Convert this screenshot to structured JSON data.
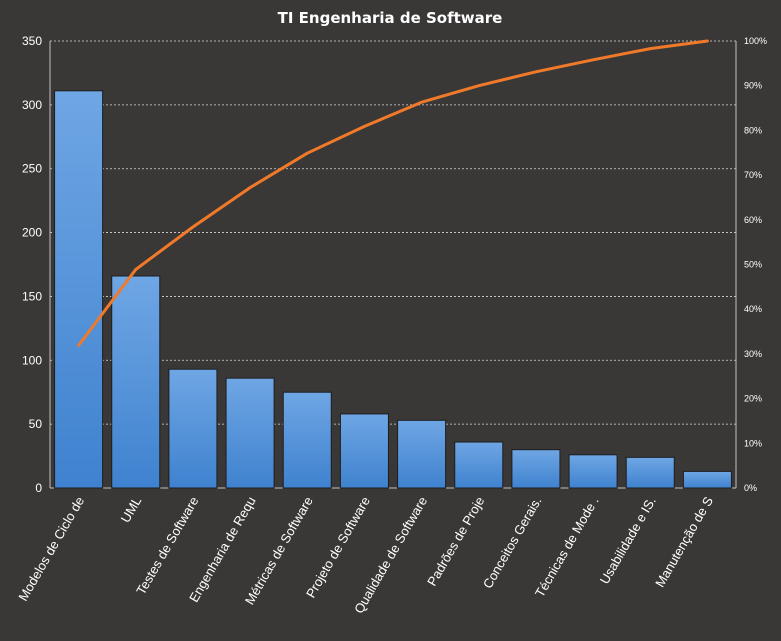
{
  "chart_data": {
    "type": "bar",
    "title": "TI Engenharia de Software",
    "categories": [
      "Modelos de Ciclo de",
      "UML",
      "Testes de Software",
      "Engenharia de Requ",
      "Métricas de Software",
      "Projeto de Software",
      "Qualidade de Software",
      "Padrões de Proje",
      "Conceitos Gerais.",
      "Técnicas de Mode .",
      "Usabilidade e IS.",
      "Manutenção de S"
    ],
    "series": [
      {
        "type": "bar",
        "values": [
          311,
          166,
          93,
          86,
          75,
          58,
          53,
          36,
          30,
          26,
          24,
          13
        ]
      },
      {
        "type": "line",
        "axis": "right",
        "values": [
          0.319,
          0.489,
          0.584,
          0.672,
          0.749,
          0.809,
          0.863,
          0.9,
          0.931,
          0.958,
          0.983,
          1.0
        ]
      }
    ],
    "ylim": [
      0,
      350
    ],
    "yticks": [
      "0",
      "50",
      "100",
      "150",
      "200",
      "250",
      "300",
      "350"
    ],
    "y2lim": [
      0,
      1
    ],
    "y2ticks": [
      "0%",
      "10%",
      "20%",
      "30%",
      "40%",
      "50%",
      "60%",
      "70%",
      "80%",
      "90%",
      "100%"
    ],
    "grid": true,
    "colors": {
      "background": "#3a3837",
      "bar_top": "#6fa6e4",
      "bar_bottom": "#3f82cf",
      "line": "#f07a2a",
      "text": "#ffffff",
      "grid": "#d9d9d9"
    }
  }
}
